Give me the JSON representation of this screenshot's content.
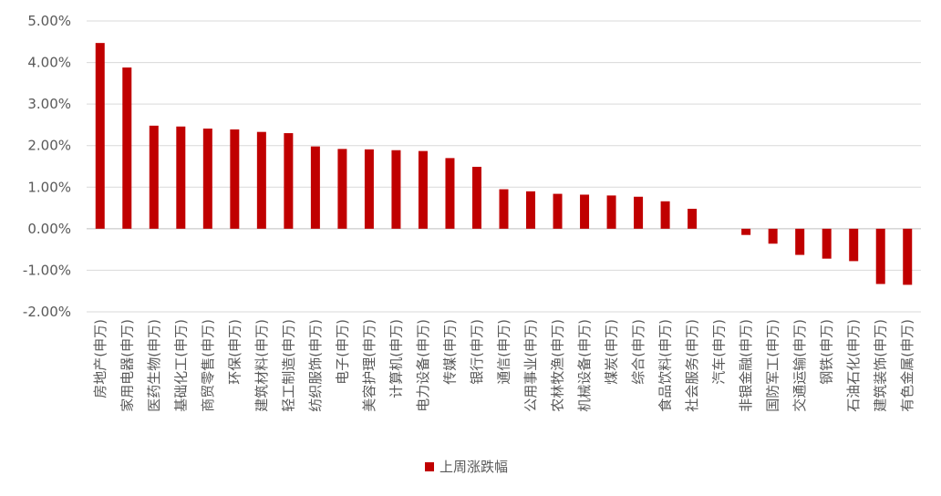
{
  "chart_data": {
    "type": "bar",
    "categories": [
      "房地产(申万)",
      "家用电器(申万)",
      "医药生物(申万)",
      "基础化工(申万)",
      "商贸零售(申万)",
      "环保(申万)",
      "建筑材料(申万)",
      "轻工制造(申万)",
      "纺织服饰(申万)",
      "电子(申万)",
      "美容护理(申万)",
      "计算机(申万)",
      "电力设备(申万)",
      "传媒(申万)",
      "银行(申万)",
      "通信(申万)",
      "公用事业(申万)",
      "农林牧渔(申万)",
      "机械设备(申万)",
      "煤炭(申万)",
      "综合(申万)",
      "食品饮料(申万)",
      "社会服务(申万)",
      "汽车(申万)",
      "非银金融(申万)",
      "国防军工(申万)",
      "交通运输(申万)",
      "钢铁(申万)",
      "石油石化(申万)",
      "建筑装饰(申万)",
      "有色金属(申万)"
    ],
    "series": [
      {
        "name": "上周涨跌幅",
        "color": "#c00000",
        "values": [
          4.47,
          3.88,
          2.48,
          2.46,
          2.41,
          2.39,
          2.33,
          2.3,
          1.98,
          1.92,
          1.91,
          1.89,
          1.87,
          1.7,
          1.49,
          0.95,
          0.9,
          0.84,
          0.82,
          0.8,
          0.77,
          0.66,
          0.48,
          0.0,
          -0.15,
          -0.36,
          -0.63,
          -0.72,
          -0.78,
          -1.33,
          -1.35
        ]
      }
    ],
    "ylim": [
      -2,
      5
    ],
    "yticks": [
      -2,
      -1,
      0,
      1,
      2,
      3,
      4,
      5
    ],
    "ytick_labels": [
      "-2.00%",
      "-1.00%",
      "0.00%",
      "1.00%",
      "2.00%",
      "3.00%",
      "4.00%",
      "5.00%"
    ],
    "grid": true,
    "legend_position": "bottom",
    "title": "",
    "xlabel": "",
    "ylabel": ""
  }
}
